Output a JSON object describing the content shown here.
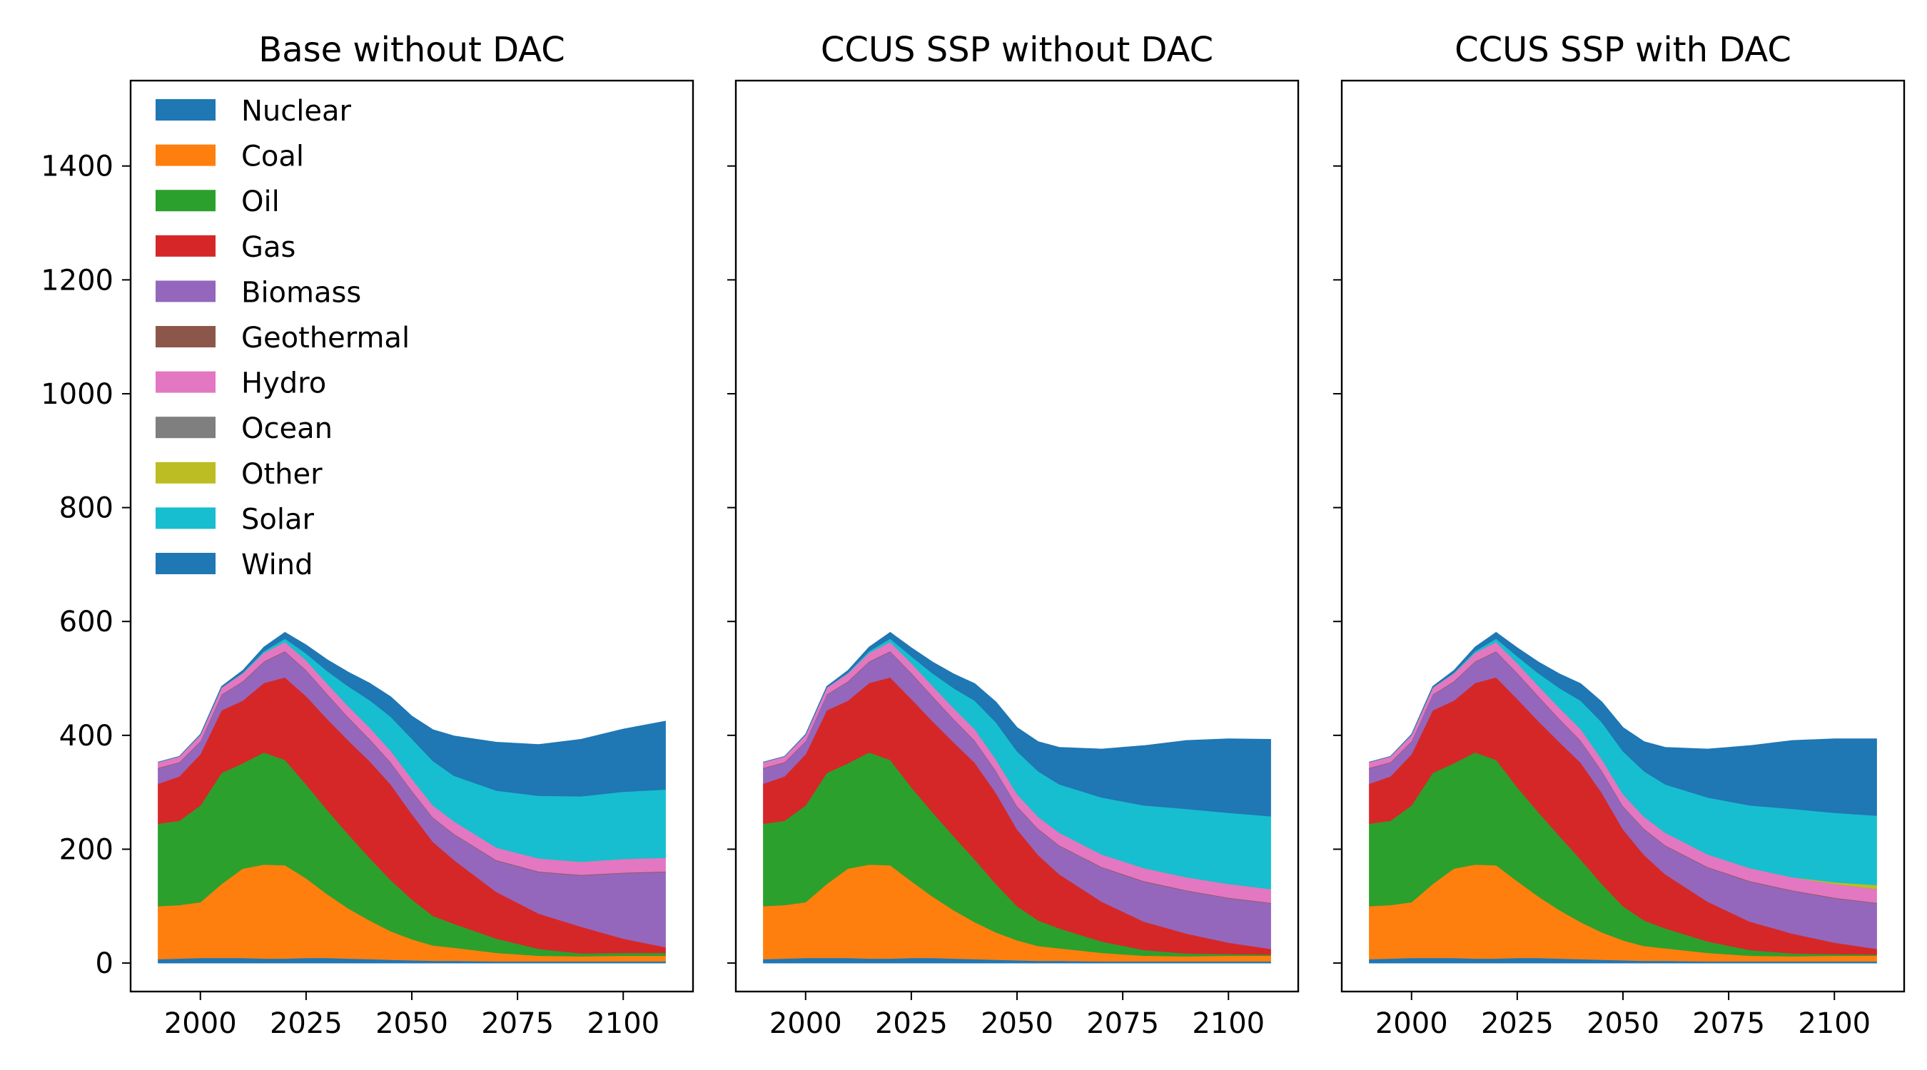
{
  "chart_data": [
    {
      "type": "area",
      "stacked": true,
      "title": "Base without DAC",
      "xlabel": "",
      "ylabel": "",
      "xlim": [
        1983.5,
        2116.5
      ],
      "ylim": [
        -50,
        1550
      ],
      "x_ticks": [
        2000,
        2025,
        2050,
        2075,
        2100
      ],
      "y_ticks": [
        0,
        200,
        400,
        600,
        800,
        1000,
        1200,
        1400
      ],
      "legend": "upper-left",
      "x": [
        1990,
        1995,
        2000,
        2005,
        2010,
        2015,
        2020,
        2025,
        2030,
        2035,
        2040,
        2045,
        2050,
        2055,
        2060,
        2070,
        2080,
        2090,
        2100,
        2110
      ],
      "series": [
        {
          "name": "Nuclear",
          "color": "#1f77b4",
          "values": [
            7,
            8,
            9,
            9,
            9,
            8,
            8,
            9,
            9,
            8,
            7,
            6,
            5,
            4,
            4,
            3,
            3,
            3,
            3,
            3
          ]
        },
        {
          "name": "Coal",
          "color": "#ff7f0e",
          "values": [
            93,
            94,
            98,
            130,
            157,
            165,
            164,
            140,
            112,
            88,
            68,
            50,
            37,
            27,
            23,
            15,
            10,
            9,
            10,
            10
          ]
        },
        {
          "name": "Oil",
          "color": "#2ca02c",
          "values": [
            145,
            148,
            170,
            195,
            185,
            197,
            185,
            165,
            148,
            130,
            110,
            90,
            70,
            52,
            42,
            25,
            12,
            5,
            5,
            5
          ]
        },
        {
          "name": "Gas",
          "color": "#d62728",
          "values": [
            70,
            78,
            90,
            110,
            110,
            122,
            145,
            155,
            160,
            165,
            170,
            168,
            150,
            130,
            112,
            82,
            62,
            47,
            25,
            10
          ]
        },
        {
          "name": "Biomass",
          "color": "#9467bd",
          "values": [
            27,
            24,
            22,
            27,
            33,
            37,
            45,
            45,
            43,
            40,
            38,
            38,
            40,
            42,
            45,
            55,
            73,
            90,
            115,
            132
          ]
        },
        {
          "name": "Geothermal",
          "color": "#8c564b",
          "values": [
            1,
            1,
            1,
            1,
            1,
            1,
            1,
            1,
            1,
            1,
            1,
            1,
            1,
            1,
            1,
            1,
            1,
            1,
            1,
            1
          ]
        },
        {
          "name": "Hydro",
          "color": "#e377c2",
          "values": [
            10,
            10,
            11,
            12,
            14,
            15,
            16,
            17,
            18,
            19,
            20,
            20,
            21,
            21,
            22,
            22,
            23,
            23,
            24,
            24
          ]
        },
        {
          "name": "Ocean",
          "color": "#7f7f7f",
          "values": [
            0,
            0,
            0,
            0,
            0,
            0,
            0,
            0,
            0,
            0,
            0,
            0,
            0,
            0,
            0,
            0,
            0,
            0,
            0,
            0
          ]
        },
        {
          "name": "Other",
          "color": "#bcbd22",
          "values": [
            0,
            0,
            0,
            0,
            0,
            0,
            0,
            0,
            0,
            0,
            0,
            0,
            0,
            0,
            0,
            0,
            0,
            0,
            0,
            0
          ]
        },
        {
          "name": "Solar",
          "color": "#17becf",
          "values": [
            0,
            0,
            0,
            0,
            1,
            3,
            6,
            12,
            22,
            35,
            48,
            60,
            70,
            78,
            80,
            100,
            110,
            115,
            118,
            120
          ]
        },
        {
          "name": "Wind",
          "color": "#1f77b4",
          "values": [
            0,
            0,
            1,
            2,
            4,
            7,
            11,
            15,
            20,
            25,
            30,
            35,
            40,
            55,
            70,
            85,
            90,
            100,
            110,
            120
          ]
        }
      ]
    },
    {
      "type": "area",
      "stacked": true,
      "title": "CCUS SSP without DAC",
      "xlabel": "",
      "ylabel": "",
      "xlim": [
        1983.5,
        2116.5
      ],
      "ylim": [
        -50,
        1550
      ],
      "x_ticks": [
        2000,
        2025,
        2050,
        2075,
        2100
      ],
      "y_ticks": [
        0,
        200,
        400,
        600,
        800,
        1000,
        1200,
        1400
      ],
      "x": [
        1990,
        1995,
        2000,
        2005,
        2010,
        2015,
        2020,
        2025,
        2030,
        2035,
        2040,
        2045,
        2050,
        2055,
        2060,
        2070,
        2080,
        2090,
        2100,
        2110
      ],
      "series": [
        {
          "name": "Nuclear",
          "values": [
            7,
            8,
            9,
            9,
            9,
            8,
            8,
            9,
            9,
            8,
            7,
            6,
            5,
            4,
            4,
            3,
            3,
            3,
            3,
            3
          ]
        },
        {
          "name": "Coal",
          "values": [
            93,
            94,
            98,
            130,
            157,
            165,
            164,
            135,
            108,
            85,
            65,
            48,
            35,
            26,
            22,
            15,
            10,
            9,
            10,
            10
          ]
        },
        {
          "name": "Oil",
          "values": [
            145,
            148,
            170,
            195,
            185,
            197,
            185,
            165,
            148,
            130,
            110,
            85,
            60,
            45,
            35,
            20,
            10,
            5,
            3,
            2
          ]
        },
        {
          "name": "Gas",
          "values": [
            70,
            78,
            90,
            110,
            110,
            122,
            145,
            155,
            160,
            165,
            170,
            160,
            135,
            115,
            95,
            70,
            50,
            35,
            20,
            10
          ]
        },
        {
          "name": "Biomass",
          "values": [
            27,
            24,
            22,
            27,
            33,
            37,
            45,
            45,
            43,
            40,
            38,
            38,
            40,
            45,
            50,
            60,
            70,
            75,
            78,
            80
          ]
        },
        {
          "name": "Geothermal",
          "values": [
            1,
            1,
            1,
            1,
            1,
            1,
            1,
            1,
            1,
            1,
            1,
            1,
            1,
            1,
            1,
            1,
            1,
            1,
            1,
            1
          ]
        },
        {
          "name": "Hydro",
          "values": [
            10,
            10,
            11,
            12,
            14,
            15,
            16,
            17,
            18,
            19,
            20,
            20,
            21,
            21,
            22,
            22,
            23,
            23,
            24,
            24
          ]
        },
        {
          "name": "Ocean",
          "values": [
            0,
            0,
            0,
            0,
            0,
            0,
            0,
            0,
            0,
            0,
            0,
            0,
            0,
            0,
            0,
            0,
            0,
            0,
            0,
            0
          ]
        },
        {
          "name": "Other",
          "values": [
            0,
            0,
            0,
            0,
            0,
            0,
            0,
            0,
            0,
            0,
            0,
            0,
            0,
            0,
            0,
            0,
            0,
            0,
            0,
            0
          ]
        },
        {
          "name": "Solar",
          "values": [
            0,
            0,
            0,
            0,
            1,
            3,
            6,
            12,
            22,
            35,
            50,
            65,
            75,
            80,
            85,
            100,
            110,
            120,
            125,
            128
          ]
        },
        {
          "name": "Wind",
          "values": [
            0,
            0,
            1,
            2,
            4,
            7,
            11,
            15,
            20,
            25,
            30,
            36,
            42,
            52,
            65,
            85,
            105,
            120,
            130,
            135
          ]
        }
      ]
    },
    {
      "type": "area",
      "stacked": true,
      "title": "CCUS SSP with DAC",
      "xlabel": "",
      "ylabel": "",
      "xlim": [
        1983.5,
        2116.5
      ],
      "ylim": [
        -50,
        1550
      ],
      "x_ticks": [
        2000,
        2025,
        2050,
        2075,
        2100
      ],
      "y_ticks": [
        0,
        200,
        400,
        600,
        800,
        1000,
        1200,
        1400
      ],
      "x": [
        1990,
        1995,
        2000,
        2005,
        2010,
        2015,
        2020,
        2025,
        2030,
        2035,
        2040,
        2045,
        2050,
        2055,
        2060,
        2070,
        2080,
        2090,
        2100,
        2110
      ],
      "series": [
        {
          "name": "Nuclear",
          "values": [
            7,
            8,
            9,
            9,
            9,
            8,
            8,
            9,
            9,
            8,
            7,
            6,
            5,
            4,
            4,
            3,
            3,
            3,
            3,
            3
          ]
        },
        {
          "name": "Coal",
          "values": [
            93,
            94,
            98,
            130,
            157,
            165,
            164,
            135,
            108,
            85,
            65,
            48,
            35,
            26,
            22,
            15,
            10,
            9,
            10,
            10
          ]
        },
        {
          "name": "Oil",
          "values": [
            145,
            148,
            170,
            195,
            185,
            197,
            185,
            165,
            148,
            130,
            110,
            85,
            60,
            45,
            35,
            20,
            10,
            5,
            3,
            2
          ]
        },
        {
          "name": "Gas",
          "values": [
            70,
            78,
            90,
            110,
            110,
            122,
            145,
            155,
            160,
            165,
            170,
            160,
            135,
            115,
            95,
            70,
            50,
            35,
            20,
            10
          ]
        },
        {
          "name": "Biomass",
          "values": [
            27,
            24,
            22,
            27,
            33,
            37,
            45,
            45,
            43,
            40,
            38,
            38,
            40,
            45,
            50,
            60,
            70,
            75,
            78,
            80
          ]
        },
        {
          "name": "Geothermal",
          "values": [
            1,
            1,
            1,
            1,
            1,
            1,
            1,
            1,
            1,
            1,
            1,
            1,
            1,
            1,
            1,
            1,
            1,
            1,
            1,
            1
          ]
        },
        {
          "name": "Hydro",
          "values": [
            10,
            10,
            11,
            12,
            14,
            15,
            16,
            17,
            18,
            19,
            20,
            20,
            21,
            21,
            22,
            22,
            23,
            23,
            24,
            24
          ]
        },
        {
          "name": "Ocean",
          "values": [
            0,
            0,
            0,
            0,
            0,
            0,
            0,
            0,
            0,
            0,
            0,
            0,
            0,
            0,
            0,
            0,
            0,
            0,
            0,
            0
          ]
        },
        {
          "name": "Other",
          "values": [
            0,
            0,
            0,
            0,
            0,
            0,
            0,
            0,
            0,
            0,
            0,
            0,
            0,
            0,
            0,
            0,
            0,
            0,
            3,
            7
          ]
        },
        {
          "name": "Solar",
          "values": [
            0,
            0,
            0,
            0,
            1,
            3,
            6,
            12,
            22,
            35,
            50,
            65,
            75,
            80,
            85,
            100,
            110,
            120,
            122,
            122
          ]
        },
        {
          "name": "Wind",
          "values": [
            0,
            0,
            1,
            2,
            4,
            7,
            11,
            15,
            20,
            25,
            30,
            36,
            42,
            52,
            65,
            85,
            105,
            120,
            130,
            135
          ]
        }
      ]
    }
  ]
}
